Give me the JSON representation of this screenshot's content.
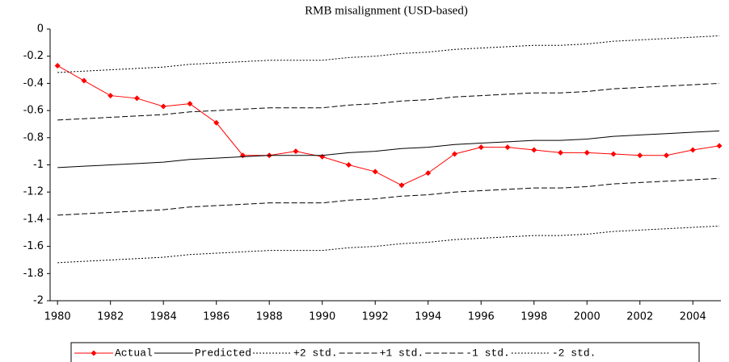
{
  "chart_data": {
    "type": "line",
    "title": "RMB misalignment (USD-based)",
    "x": [
      1980,
      1981,
      1982,
      1983,
      1984,
      1985,
      1986,
      1987,
      1988,
      1989,
      1990,
      1991,
      1992,
      1993,
      1994,
      1995,
      1996,
      1997,
      1998,
      1999,
      2000,
      2001,
      2002,
      2003,
      2004,
      2005
    ],
    "xlim": [
      1979.72,
      2005.06
    ],
    "xticks": [
      1980,
      1982,
      1984,
      1986,
      1988,
      1990,
      1992,
      1994,
      1996,
      1998,
      2000,
      2002,
      2004
    ],
    "ylim": [
      -2,
      0
    ],
    "yticks": [
      0,
      -0.2,
      -0.4,
      -0.6,
      -0.8,
      -1,
      -1.2,
      -1.4,
      -1.6,
      -1.8,
      -2
    ],
    "series": [
      {
        "name": "Actual",
        "color": "#ff0000",
        "style": "solid",
        "marker": "diamond",
        "values": [
          -0.27,
          -0.38,
          -0.49,
          -0.51,
          -0.57,
          -0.55,
          -0.69,
          -0.93,
          -0.93,
          -0.9,
          -0.94,
          -1.0,
          -1.05,
          -1.15,
          -1.06,
          -0.92,
          -0.87,
          -0.87,
          -0.89,
          -0.91,
          -0.91,
          -0.92,
          -0.93,
          -0.93,
          -0.89,
          -0.86
        ]
      },
      {
        "name": "Predicted",
        "color": "#000000",
        "style": "solid",
        "values": [
          -1.02,
          -1.01,
          -1.0,
          -0.99,
          -0.98,
          -0.96,
          -0.95,
          -0.94,
          -0.93,
          -0.93,
          -0.93,
          -0.91,
          -0.9,
          -0.88,
          -0.87,
          -0.85,
          -0.84,
          -0.83,
          -0.82,
          -0.82,
          -0.81,
          -0.79,
          -0.78,
          -0.77,
          -0.76,
          -0.75
        ]
      },
      {
        "name": "+2 std.",
        "color": "#000000",
        "style": "dotted",
        "values": [
          -0.32,
          -0.31,
          -0.3,
          -0.29,
          -0.28,
          -0.26,
          -0.25,
          -0.24,
          -0.23,
          -0.23,
          -0.23,
          -0.21,
          -0.2,
          -0.18,
          -0.17,
          -0.15,
          -0.14,
          -0.13,
          -0.12,
          -0.12,
          -0.11,
          -0.09,
          -0.08,
          -0.07,
          -0.06,
          -0.05
        ]
      },
      {
        "name": "+1 std.",
        "color": "#000000",
        "style": "dashed",
        "values": [
          -0.67,
          -0.66,
          -0.65,
          -0.64,
          -0.63,
          -0.61,
          -0.6,
          -0.59,
          -0.58,
          -0.58,
          -0.58,
          -0.56,
          -0.55,
          -0.53,
          -0.52,
          -0.5,
          -0.49,
          -0.48,
          -0.47,
          -0.47,
          -0.46,
          -0.44,
          -0.43,
          -0.42,
          -0.41,
          -0.4
        ]
      },
      {
        "name": "-1 std.",
        "color": "#000000",
        "style": "dashed",
        "values": [
          -1.37,
          -1.36,
          -1.35,
          -1.34,
          -1.33,
          -1.31,
          -1.3,
          -1.29,
          -1.28,
          -1.28,
          -1.28,
          -1.26,
          -1.25,
          -1.23,
          -1.22,
          -1.2,
          -1.19,
          -1.18,
          -1.17,
          -1.17,
          -1.16,
          -1.14,
          -1.13,
          -1.12,
          -1.11,
          -1.1
        ]
      },
      {
        "name": "-2 std.",
        "color": "#000000",
        "style": "dotted",
        "values": [
          -1.72,
          -1.71,
          -1.7,
          -1.69,
          -1.68,
          -1.66,
          -1.65,
          -1.64,
          -1.63,
          -1.63,
          -1.63,
          -1.61,
          -1.6,
          -1.58,
          -1.57,
          -1.55,
          -1.54,
          -1.53,
          -1.52,
          -1.52,
          -1.51,
          -1.49,
          -1.48,
          -1.47,
          -1.46,
          -1.45
        ]
      }
    ]
  }
}
